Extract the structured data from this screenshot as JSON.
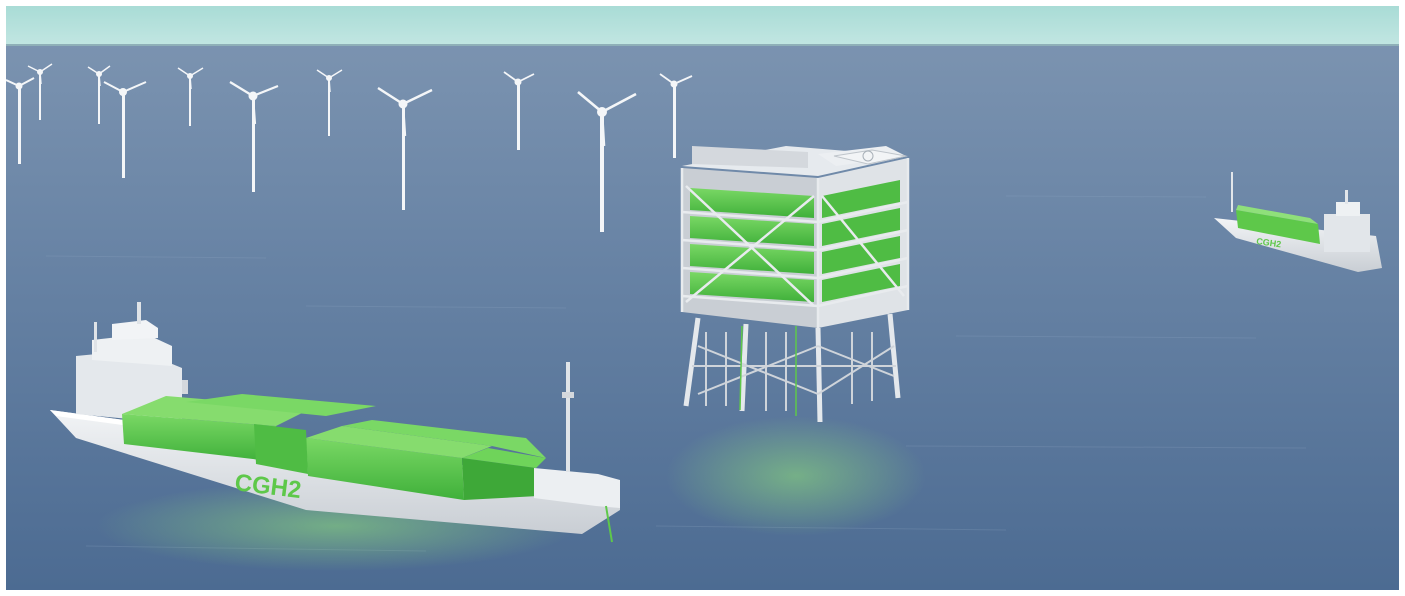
{
  "scene": {
    "ship_front_label": "CGH2",
    "ship_back_label": "CGH2",
    "colors": {
      "sky": "#b9e1df",
      "sea_far": "#6f88a8",
      "sea_near": "#4f6f96",
      "hull": "#e6eaee",
      "tank": "#5ec84a",
      "tank_dark": "#3ea838",
      "structure": "#d4d8dd",
      "turbine": "#f4f6f8"
    }
  }
}
